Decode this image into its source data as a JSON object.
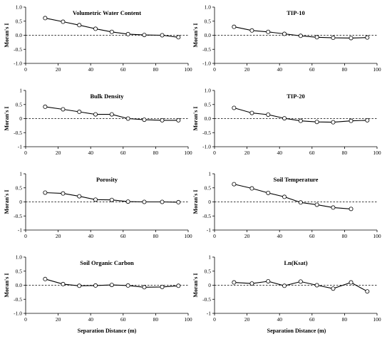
{
  "figure": {
    "shared_ylabel": "Moran's I",
    "shared_xlabel": "Separation Distance (m)"
  },
  "chart_data": [
    {
      "type": "line",
      "title": "Volumetric Water Content",
      "xlim": [
        0,
        100
      ],
      "ylim": [
        -1,
        1
      ],
      "xticks": [
        "0",
        "20",
        "40",
        "60",
        "80",
        "100"
      ],
      "yticks": [
        "-1.0",
        "-0.5",
        "0.0",
        "0.5",
        "1.0"
      ],
      "x": [
        12,
        23,
        33,
        43,
        53,
        63,
        73,
        84,
        94
      ],
      "values": [
        0.61,
        0.48,
        0.36,
        0.23,
        0.12,
        0.04,
        0.01,
        0.0,
        -0.07
      ],
      "reference_line": 0,
      "grid": false
    },
    {
      "type": "line",
      "title": "TIP-10",
      "xlim": [
        0,
        100
      ],
      "ylim": [
        -1,
        1
      ],
      "xticks": [
        "0",
        "20",
        "40",
        "60",
        "80",
        "100"
      ],
      "yticks": [
        "-1.0",
        "-0.5",
        "0.0",
        "0.5",
        "1.0"
      ],
      "x": [
        12,
        23,
        33,
        43,
        53,
        63,
        73,
        84,
        94
      ],
      "values": [
        0.3,
        0.17,
        0.12,
        0.05,
        -0.02,
        -0.07,
        -0.09,
        -0.1,
        -0.08
      ],
      "reference_line": 0,
      "grid": false
    },
    {
      "type": "line",
      "title": "Bulk Density",
      "xlim": [
        0,
        100
      ],
      "ylim": [
        -1,
        1
      ],
      "xticks": [
        "0",
        "20",
        "40",
        "60",
        "80",
        "100"
      ],
      "yticks": [
        "-1",
        "-0.5",
        "0",
        "0.5",
        "1"
      ],
      "x": [
        12,
        23,
        33,
        43,
        53,
        63,
        73,
        84,
        94
      ],
      "values": [
        0.42,
        0.33,
        0.24,
        0.15,
        0.15,
        0.0,
        -0.04,
        -0.06,
        -0.06
      ],
      "reference_line": 0,
      "grid": false
    },
    {
      "type": "line",
      "title": "TIP-20",
      "xlim": [
        0,
        100
      ],
      "ylim": [
        -1,
        1
      ],
      "xticks": [
        "0",
        "20",
        "40",
        "60",
        "80",
        "100"
      ],
      "yticks": [
        "-1.0",
        "-0.5",
        "0.0",
        "0.5",
        "1.0"
      ],
      "x": [
        12,
        23,
        33,
        43,
        53,
        63,
        73,
        84,
        94
      ],
      "values": [
        0.38,
        0.2,
        0.14,
        0.01,
        -0.08,
        -0.12,
        -0.13,
        -0.08,
        -0.06
      ],
      "reference_line": 0,
      "grid": false
    },
    {
      "type": "line",
      "title": "Porosity",
      "xlim": [
        0,
        100
      ],
      "ylim": [
        -1,
        1
      ],
      "xticks": [
        "0",
        "20",
        "40",
        "60",
        "80",
        "100"
      ],
      "yticks": [
        "-1",
        "-0.5",
        "0",
        "0.5",
        "1"
      ],
      "x": [
        12,
        23,
        33,
        43,
        53,
        63,
        73,
        84,
        94
      ],
      "values": [
        0.33,
        0.3,
        0.2,
        0.08,
        0.07,
        0.01,
        0.0,
        0.0,
        -0.01
      ],
      "reference_line": 0,
      "grid": false
    },
    {
      "type": "line",
      "title": "Soil Temperature",
      "xlim": [
        0,
        100
      ],
      "ylim": [
        -1,
        1
      ],
      "xticks": [
        "0",
        "20",
        "40",
        "60",
        "80",
        "100"
      ],
      "yticks": [
        "-1",
        "-0.5",
        "0",
        "0.5",
        "1"
      ],
      "x": [
        12,
        23,
        33,
        43,
        53,
        63,
        73,
        84
      ],
      "values": [
        0.63,
        0.48,
        0.32,
        0.18,
        -0.02,
        -0.1,
        -0.2,
        -0.25
      ],
      "reference_line": 0,
      "grid": false
    },
    {
      "type": "line",
      "title": "Soil Organic Carbon",
      "xlim": [
        0,
        100
      ],
      "ylim": [
        -1,
        1
      ],
      "xticks": [
        "0",
        "20",
        "40",
        "60",
        "80",
        "100"
      ],
      "yticks": [
        "-1.0",
        "-0.5",
        "0.0",
        "0.5",
        "1.0"
      ],
      "x": [
        12,
        23,
        33,
        43,
        53,
        63,
        73,
        84,
        94
      ],
      "values": [
        0.22,
        0.04,
        -0.02,
        -0.01,
        0.01,
        -0.01,
        -0.07,
        -0.06,
        -0.02
      ],
      "reference_line": 0,
      "grid": false
    },
    {
      "type": "line",
      "title": "Ln(Ksat)",
      "xlim": [
        0,
        100
      ],
      "ylim": [
        -1,
        1
      ],
      "xticks": [
        "0",
        "20",
        "40",
        "60",
        "80",
        "100"
      ],
      "yticks": [
        "-1",
        "-0.5",
        "0",
        "0.5",
        "1"
      ],
      "x": [
        12,
        23,
        33,
        43,
        53,
        63,
        73,
        84,
        94
      ],
      "values": [
        0.1,
        0.06,
        0.14,
        -0.02,
        0.13,
        0.0,
        -0.12,
        0.1,
        -0.22
      ],
      "reference_line": 0,
      "grid": false
    }
  ]
}
